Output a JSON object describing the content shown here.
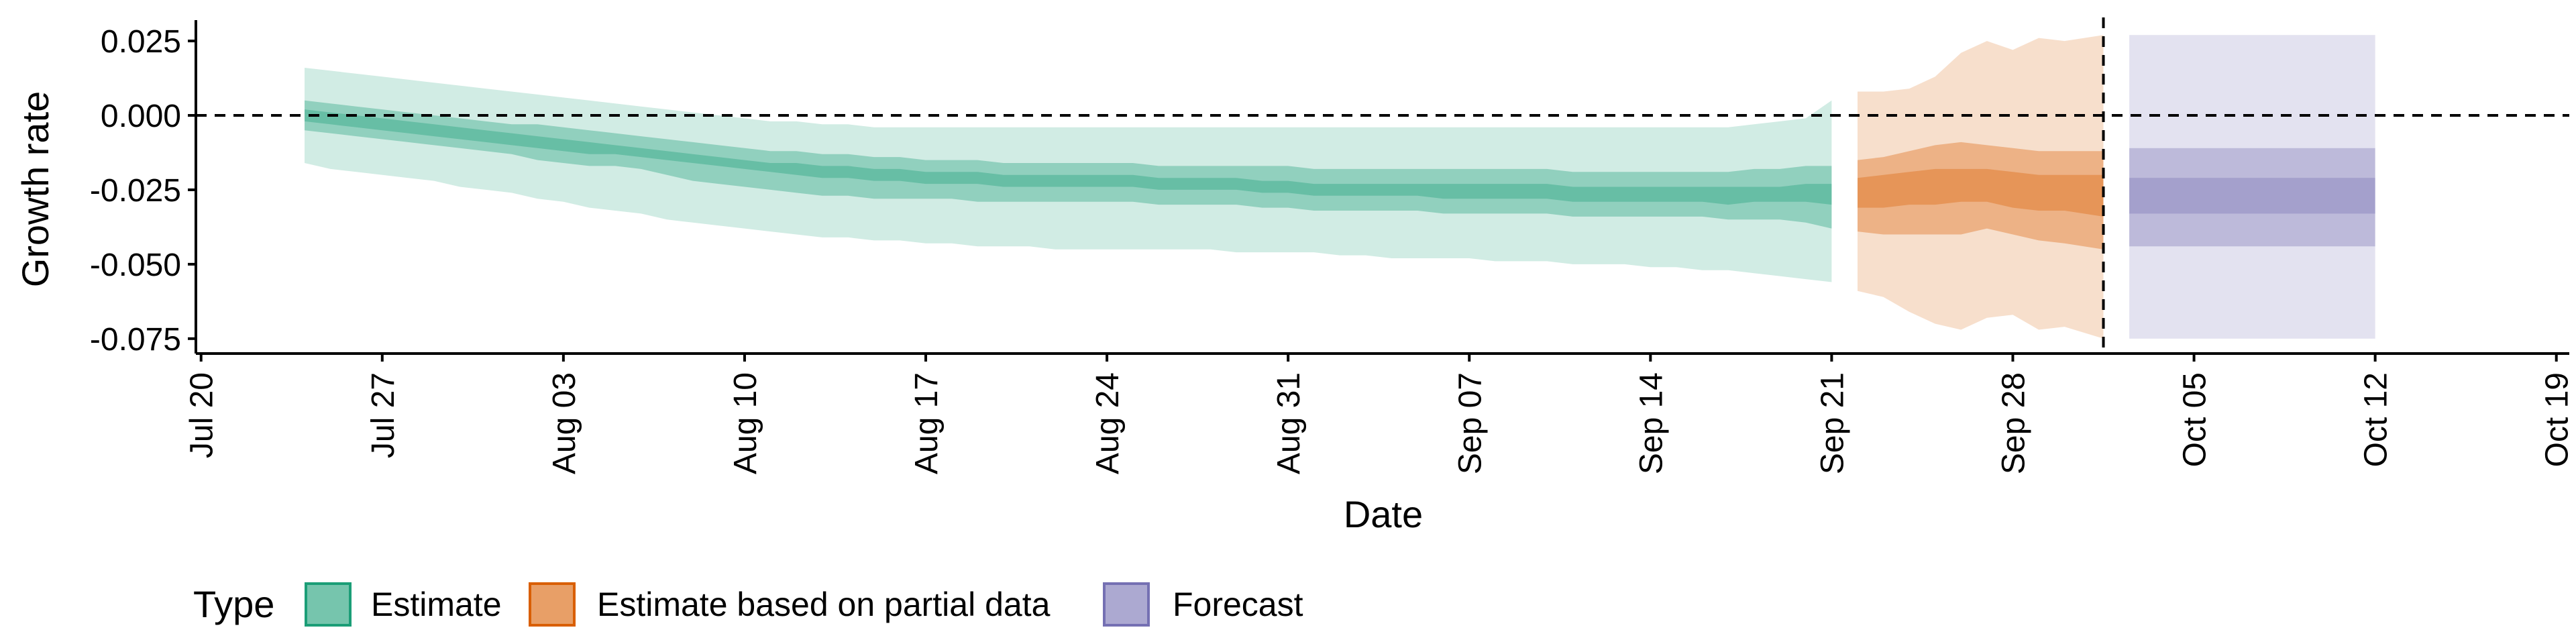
{
  "chart_data": {
    "type": "area",
    "title": "",
    "xlabel": "Date",
    "ylabel": "Growth rate",
    "ylim": [
      -0.08,
      0.032
    ],
    "xlim_days": [
      -0.2,
      91.5
    ],
    "x_origin_date": "2020-07-20",
    "x_ticks": [
      {
        "day": 0,
        "label": "Jul 20"
      },
      {
        "day": 7,
        "label": "Jul 27"
      },
      {
        "day": 14,
        "label": "Aug 03"
      },
      {
        "day": 21,
        "label": "Aug 10"
      },
      {
        "day": 28,
        "label": "Aug 17"
      },
      {
        "day": 35,
        "label": "Aug 24"
      },
      {
        "day": 42,
        "label": "Aug 31"
      },
      {
        "day": 49,
        "label": "Sep 07"
      },
      {
        "day": 56,
        "label": "Sep 14"
      },
      {
        "day": 63,
        "label": "Sep 21"
      },
      {
        "day": 70,
        "label": "Sep 28"
      },
      {
        "day": 77,
        "label": "Oct 05"
      },
      {
        "day": 84,
        "label": "Oct 12"
      },
      {
        "day": 91,
        "label": "Oct 19"
      }
    ],
    "y_ticks": [
      {
        "value": 0.025,
        "label": "0.025"
      },
      {
        "value": 0.0,
        "label": "0.000"
      },
      {
        "value": -0.025,
        "label": "-0.025"
      },
      {
        "value": -0.05,
        "label": "-0.050"
      },
      {
        "value": -0.075,
        "label": "-0.075"
      }
    ],
    "reference_lines": {
      "hline_y": 0.0,
      "vline_day": 73.5
    },
    "colors": {
      "estimate": "#1b9e77",
      "partial": "#d95f02",
      "forecast": "#7570b3",
      "axis": "#000000"
    },
    "series": [
      {
        "name": "Estimate",
        "x": [
          4,
          5,
          6,
          7,
          8,
          9,
          10,
          11,
          12,
          13,
          14,
          15,
          16,
          17,
          18,
          19,
          20,
          21,
          22,
          23,
          24,
          25,
          26,
          27,
          28,
          29,
          30,
          31,
          32,
          33,
          34,
          35,
          36,
          37,
          38,
          39,
          40,
          41,
          42,
          43,
          44,
          45,
          46,
          47,
          48,
          49,
          50,
          51,
          52,
          53,
          54,
          55,
          56,
          57,
          58,
          59,
          60,
          61,
          62,
          63
        ],
        "lower90": [
          -0.016,
          -0.018,
          -0.019,
          -0.02,
          -0.021,
          -0.022,
          -0.024,
          -0.025,
          -0.026,
          -0.028,
          -0.029,
          -0.031,
          -0.032,
          -0.033,
          -0.035,
          -0.036,
          -0.037,
          -0.038,
          -0.039,
          -0.04,
          -0.041,
          -0.041,
          -0.042,
          -0.042,
          -0.043,
          -0.043,
          -0.044,
          -0.044,
          -0.044,
          -0.045,
          -0.045,
          -0.045,
          -0.045,
          -0.045,
          -0.045,
          -0.045,
          -0.046,
          -0.046,
          -0.046,
          -0.046,
          -0.047,
          -0.047,
          -0.048,
          -0.048,
          -0.048,
          -0.048,
          -0.049,
          -0.049,
          -0.049,
          -0.05,
          -0.05,
          -0.05,
          -0.051,
          -0.051,
          -0.052,
          -0.052,
          -0.053,
          -0.054,
          -0.055,
          -0.056
        ],
        "upper90": [
          0.016,
          0.015,
          0.014,
          0.013,
          0.012,
          0.011,
          0.01,
          0.009,
          0.008,
          0.007,
          0.006,
          0.005,
          0.004,
          0.003,
          0.002,
          0.001,
          0.0,
          -0.001,
          -0.002,
          -0.002,
          -0.003,
          -0.003,
          -0.004,
          -0.004,
          -0.004,
          -0.004,
          -0.004,
          -0.004,
          -0.004,
          -0.004,
          -0.004,
          -0.004,
          -0.004,
          -0.004,
          -0.004,
          -0.004,
          -0.004,
          -0.004,
          -0.004,
          -0.004,
          -0.004,
          -0.004,
          -0.004,
          -0.004,
          -0.004,
          -0.004,
          -0.004,
          -0.004,
          -0.004,
          -0.004,
          -0.004,
          -0.004,
          -0.004,
          -0.004,
          -0.004,
          -0.004,
          -0.003,
          -0.002,
          -0.001,
          0.005
        ],
        "lower50": [
          -0.005,
          -0.006,
          -0.007,
          -0.008,
          -0.009,
          -0.01,
          -0.011,
          -0.012,
          -0.013,
          -0.015,
          -0.016,
          -0.017,
          -0.017,
          -0.018,
          -0.02,
          -0.022,
          -0.023,
          -0.024,
          -0.025,
          -0.026,
          -0.027,
          -0.027,
          -0.028,
          -0.028,
          -0.028,
          -0.028,
          -0.029,
          -0.029,
          -0.029,
          -0.029,
          -0.029,
          -0.029,
          -0.029,
          -0.03,
          -0.03,
          -0.03,
          -0.03,
          -0.031,
          -0.031,
          -0.032,
          -0.032,
          -0.032,
          -0.032,
          -0.032,
          -0.033,
          -0.033,
          -0.033,
          -0.033,
          -0.033,
          -0.034,
          -0.034,
          -0.034,
          -0.034,
          -0.034,
          -0.034,
          -0.035,
          -0.035,
          -0.035,
          -0.036,
          -0.038
        ],
        "upper50": [
          0.005,
          0.004,
          0.003,
          0.002,
          0.001,
          0.0,
          -0.001,
          -0.002,
          -0.003,
          -0.003,
          -0.004,
          -0.005,
          -0.006,
          -0.007,
          -0.008,
          -0.009,
          -0.01,
          -0.011,
          -0.012,
          -0.012,
          -0.013,
          -0.013,
          -0.014,
          -0.014,
          -0.015,
          -0.015,
          -0.015,
          -0.016,
          -0.016,
          -0.016,
          -0.016,
          -0.016,
          -0.016,
          -0.017,
          -0.017,
          -0.017,
          -0.017,
          -0.017,
          -0.017,
          -0.018,
          -0.018,
          -0.018,
          -0.018,
          -0.018,
          -0.018,
          -0.018,
          -0.018,
          -0.018,
          -0.018,
          -0.019,
          -0.019,
          -0.019,
          -0.019,
          -0.019,
          -0.019,
          -0.019,
          -0.018,
          -0.018,
          -0.017,
          -0.017
        ],
        "lower20": [
          -0.002,
          -0.003,
          -0.004,
          -0.005,
          -0.006,
          -0.007,
          -0.008,
          -0.009,
          -0.01,
          -0.011,
          -0.012,
          -0.013,
          -0.013,
          -0.014,
          -0.015,
          -0.016,
          -0.017,
          -0.018,
          -0.019,
          -0.02,
          -0.021,
          -0.021,
          -0.022,
          -0.022,
          -0.023,
          -0.023,
          -0.023,
          -0.024,
          -0.024,
          -0.024,
          -0.024,
          -0.024,
          -0.024,
          -0.025,
          -0.025,
          -0.025,
          -0.025,
          -0.026,
          -0.026,
          -0.027,
          -0.027,
          -0.027,
          -0.027,
          -0.027,
          -0.028,
          -0.028,
          -0.028,
          -0.028,
          -0.028,
          -0.029,
          -0.029,
          -0.029,
          -0.029,
          -0.029,
          -0.029,
          -0.03,
          -0.029,
          -0.029,
          -0.029,
          -0.03
        ],
        "upper20": [
          0.002,
          0.001,
          0.0,
          -0.001,
          -0.002,
          -0.003,
          -0.004,
          -0.005,
          -0.006,
          -0.007,
          -0.008,
          -0.009,
          -0.01,
          -0.011,
          -0.012,
          -0.013,
          -0.014,
          -0.015,
          -0.016,
          -0.016,
          -0.017,
          -0.017,
          -0.018,
          -0.018,
          -0.019,
          -0.019,
          -0.019,
          -0.02,
          -0.02,
          -0.02,
          -0.02,
          -0.02,
          -0.02,
          -0.021,
          -0.021,
          -0.021,
          -0.021,
          -0.022,
          -0.022,
          -0.023,
          -0.023,
          -0.023,
          -0.023,
          -0.023,
          -0.023,
          -0.023,
          -0.023,
          -0.023,
          -0.023,
          -0.024,
          -0.024,
          -0.024,
          -0.024,
          -0.024,
          -0.024,
          -0.024,
          -0.024,
          -0.024,
          -0.023,
          -0.023
        ]
      },
      {
        "name": "Estimate based on partial data",
        "x": [
          64,
          65,
          66,
          67,
          68,
          69,
          70,
          71,
          72,
          73.5
        ],
        "lower90": [
          -0.059,
          -0.061,
          -0.066,
          -0.07,
          -0.072,
          -0.068,
          -0.067,
          -0.072,
          -0.071,
          -0.075
        ],
        "upper90": [
          0.008,
          0.008,
          0.009,
          0.013,
          0.021,
          0.025,
          0.022,
          0.026,
          0.025,
          0.027
        ],
        "lower50": [
          -0.039,
          -0.04,
          -0.04,
          -0.04,
          -0.04,
          -0.038,
          -0.04,
          -0.042,
          -0.043,
          -0.045
        ],
        "upper50": [
          -0.015,
          -0.014,
          -0.012,
          -0.01,
          -0.009,
          -0.01,
          -0.011,
          -0.012,
          -0.012,
          -0.012
        ],
        "lower20": [
          -0.031,
          -0.031,
          -0.03,
          -0.03,
          -0.029,
          -0.029,
          -0.031,
          -0.032,
          -0.032,
          -0.034
        ],
        "upper20": [
          -0.021,
          -0.02,
          -0.019,
          -0.018,
          -0.018,
          -0.018,
          -0.019,
          -0.02,
          -0.02,
          -0.02
        ]
      },
      {
        "name": "Forecast",
        "x": [
          74.5,
          84
        ],
        "lower90": [
          -0.075,
          -0.075
        ],
        "upper90": [
          0.027,
          0.027
        ],
        "lower50": [
          -0.044,
          -0.044
        ],
        "upper50": [
          -0.011,
          -0.011
        ],
        "lower20": [
          -0.033,
          -0.033
        ],
        "upper20": [
          -0.021,
          -0.021
        ]
      }
    ],
    "legend": {
      "title": "Type",
      "position": "bottom-left",
      "entries": [
        "Estimate",
        "Estimate based on partial data",
        "Forecast"
      ]
    }
  }
}
